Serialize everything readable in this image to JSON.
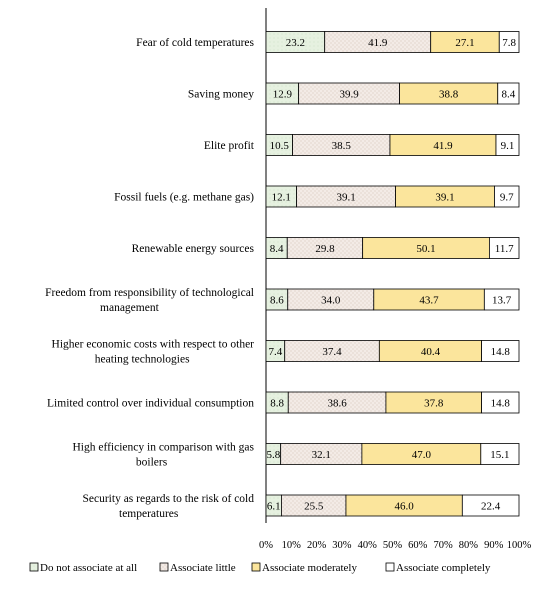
{
  "chart_data": {
    "type": "bar",
    "orientation": "horizontal",
    "stacked": true,
    "percent": true,
    "categories": [
      [
        "Fear of cold temperatures"
      ],
      [
        "Saving money"
      ],
      [
        "Elite profit"
      ],
      [
        "Fossil fuels (e.g. methane gas)"
      ],
      [
        "Renewable energy sources"
      ],
      [
        "Freedom from responsibility of technological",
        "management"
      ],
      [
        "Higher economic costs with respect to other",
        "heating technologies"
      ],
      [
        "Limited control over individual consumption"
      ],
      [
        "High efficiency in comparison with gas",
        "boilers"
      ],
      [
        "Security as regards to the risk of cold",
        "temperatures"
      ]
    ],
    "series": [
      {
        "name": "Do not associate at all",
        "color": "#e6f1e0",
        "values": [
          23.2,
          12.9,
          10.5,
          12.1,
          8.4,
          8.6,
          7.4,
          8.8,
          5.8,
          6.1
        ]
      },
      {
        "name": "Associate little",
        "color": "#f3ebe6",
        "values": [
          41.9,
          39.9,
          38.5,
          39.1,
          29.8,
          34.0,
          37.4,
          38.6,
          32.1,
          25.5
        ]
      },
      {
        "name": "Associate moderately",
        "color": "#fbe59c",
        "values": [
          27.1,
          38.8,
          41.9,
          39.1,
          50.1,
          43.7,
          40.4,
          37.8,
          47.0,
          46.0
        ]
      },
      {
        "name": "Associate completely",
        "color": "#ffffff",
        "values": [
          7.8,
          8.4,
          9.1,
          9.7,
          11.7,
          13.7,
          14.8,
          14.8,
          15.1,
          22.4
        ]
      }
    ],
    "xlim": [
      0,
      100
    ],
    "xticks": [
      "0%",
      "10%",
      "20%",
      "30%",
      "40%",
      "50%",
      "60%",
      "70%",
      "80%",
      "90%",
      "100%"
    ],
    "legend_position": "bottom",
    "grid": false
  }
}
